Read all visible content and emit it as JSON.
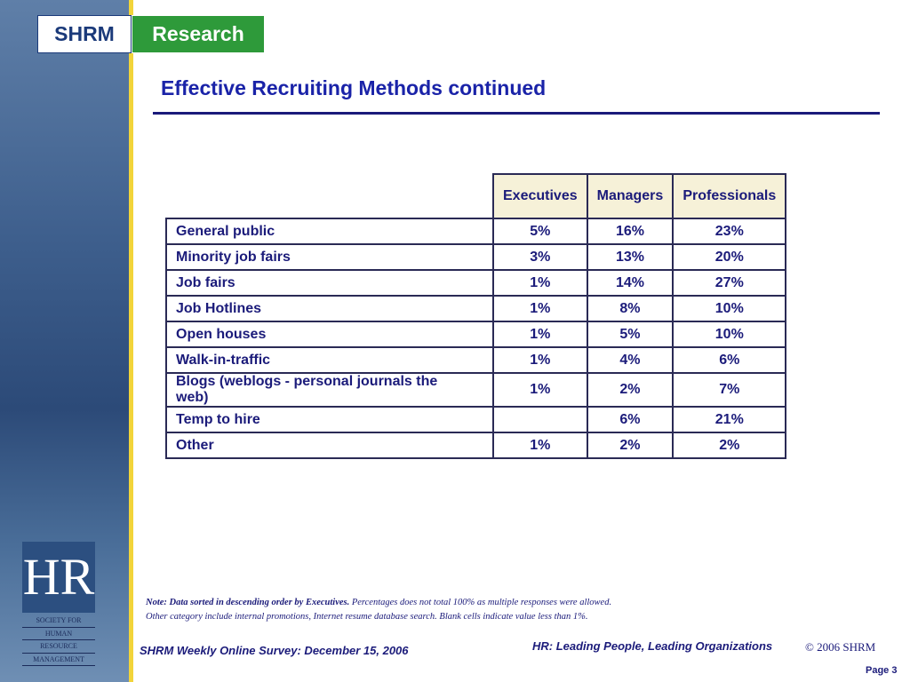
{
  "logo": {
    "name": "SHRM",
    "product": "Research"
  },
  "title": "Effective Recruiting Methods continued",
  "table": {
    "columns": [
      "Executives",
      "Managers",
      "Professionals"
    ],
    "rows": [
      [
        "General public",
        "5%",
        "16%",
        "23%"
      ],
      [
        "Minority job fairs",
        "3%",
        "13%",
        "20%"
      ],
      [
        "Job fairs",
        "1%",
        "14%",
        "27%"
      ],
      [
        "Job Hotlines",
        "1%",
        "8%",
        "10%"
      ],
      [
        "Open houses",
        "1%",
        "5%",
        "10%"
      ],
      [
        "Walk-in-traffic",
        "1%",
        "4%",
        "6%"
      ],
      [
        "Blogs (weblogs - personal journals the web)",
        "1%",
        "2%",
        "7%"
      ],
      [
        "Temp to hire",
        null,
        "6%",
        "21%"
      ],
      [
        "Other",
        "1%",
        "2%",
        "2%"
      ]
    ]
  },
  "note": {
    "lead": "Note: Data sorted in descending order by Executives.",
    "body": [
      "Percentages does not total 100% as multiple responses were allowed.",
      "Other category include internal promotions, Internet resume database search. Blank cells indicate value less than 1%."
    ]
  },
  "hr_logo": {
    "mark": "HR",
    "lines": [
      "SOCIETY FOR",
      "HUMAN",
      "RESOURCE",
      "MANAGEMENT"
    ]
  },
  "footer": {
    "survey": "SHRM Weekly Online Survey: December 15, 2006",
    "tagline": "HR: Leading People, Leading Organizations",
    "copyright": "© 2006 SHRM",
    "page": "Page 3"
  }
}
